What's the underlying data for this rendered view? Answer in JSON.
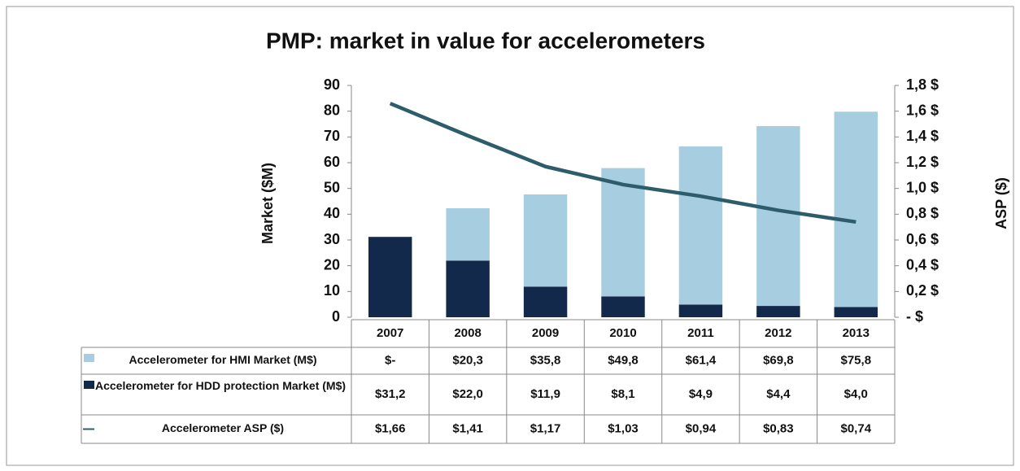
{
  "chart_data": {
    "type": "bar",
    "stacked": true,
    "title": "PMP: market in value for accelerometers",
    "ylabel": "Market ($M)",
    "y2label": "ASP ($)",
    "categories": [
      "2007",
      "2008",
      "2009",
      "2010",
      "2011",
      "2012",
      "2013"
    ],
    "series": [
      {
        "name": "Accelerometer for HDD protection Market (M$)",
        "color": "#13294b",
        "values": [
          31.2,
          22.0,
          11.9,
          8.1,
          4.9,
          4.4,
          4.0
        ],
        "value_labels": [
          "$31,2",
          "$22,0",
          "$11,9",
          "$8,1",
          "$4,9",
          "$4,4",
          "$4,0"
        ]
      },
      {
        "name": "Accelerometer for HMI Market (M$)",
        "color": "#a7cde0",
        "values": [
          0,
          20.3,
          35.8,
          49.8,
          61.4,
          69.8,
          75.8
        ],
        "value_labels": [
          "$-",
          "$20,3",
          "$35,8",
          "$49,8",
          "$61,4",
          "$69,8",
          "$75,8"
        ]
      },
      {
        "name": "Accelerometer ASP ($)",
        "color": "#2d5d6b",
        "type": "line",
        "axis": "y2",
        "values": [
          1.66,
          1.41,
          1.17,
          1.03,
          0.94,
          0.83,
          0.74
        ],
        "value_labels": [
          "$1,66",
          "$1,41",
          "$1,17",
          "$1,03",
          "$0,94",
          "$0,83",
          "$0,74"
        ]
      }
    ],
    "table_order": [
      1,
      0,
      2
    ],
    "ylim": [
      0,
      90
    ],
    "yticks": [
      0,
      10,
      20,
      30,
      40,
      50,
      60,
      70,
      80,
      90
    ],
    "y2lim": [
      0,
      1.8
    ],
    "y2ticks": [
      {
        "value": 0,
        "label": "- $"
      },
      {
        "value": 0.2,
        "label": "0,2 $"
      },
      {
        "value": 0.4,
        "label": "0,4 $"
      },
      {
        "value": 0.6,
        "label": "0,6 $"
      },
      {
        "value": 0.8,
        "label": "0,8 $"
      },
      {
        "value": 1.0,
        "label": "1,0 $"
      },
      {
        "value": 1.2,
        "label": "1,2 $"
      },
      {
        "value": 1.4,
        "label": "1,4 $"
      },
      {
        "value": 1.6,
        "label": "1,6 $"
      },
      {
        "value": 1.8,
        "label": "1,8 $"
      }
    ],
    "grid": false
  }
}
